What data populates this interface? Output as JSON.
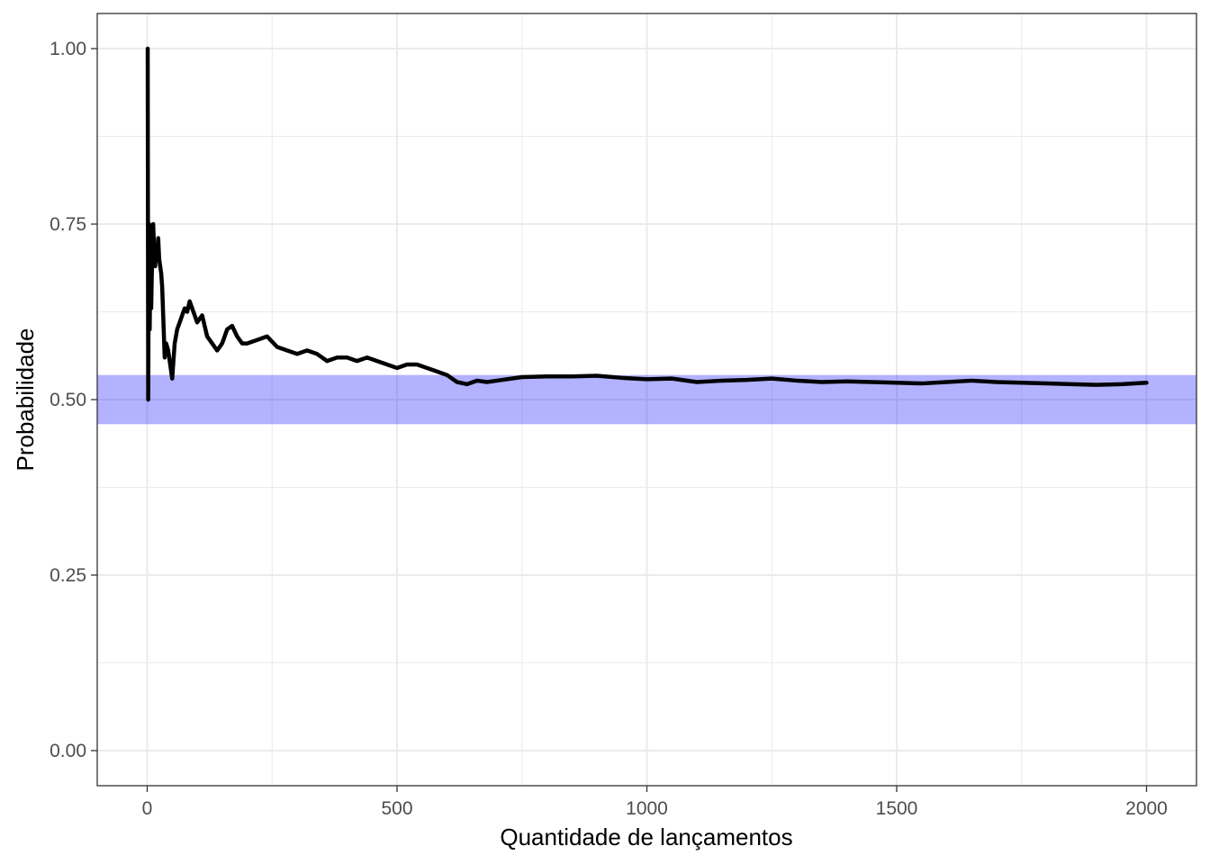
{
  "chart_data": {
    "type": "line",
    "title": "",
    "xlabel": "Quantidade de lançamentos",
    "ylabel": "Probabilidade",
    "xlim": [
      -100,
      2100
    ],
    "ylim": [
      -0.05,
      1.05
    ],
    "x_ticks": [
      0,
      500,
      1000,
      1500,
      2000
    ],
    "x_tick_labels": [
      "0",
      "500",
      "1000",
      "1500",
      "2000"
    ],
    "y_ticks": [
      0,
      0.25,
      0.5,
      0.75,
      1
    ],
    "y_tick_labels": [
      "0.00",
      "0.25",
      "0.50",
      "0.75",
      "1.00"
    ],
    "grid": true,
    "band": {
      "ymin": 0.465,
      "ymax": 0.535,
      "color": "#0000ff",
      "opacity": 0.3
    },
    "line_color": "#000000",
    "series": [
      {
        "x": [
          1,
          2,
          3,
          4,
          5,
          6,
          7,
          8,
          9,
          10,
          12,
          14,
          16,
          18,
          20,
          22,
          24,
          26,
          28,
          30,
          32,
          35,
          38,
          42,
          46,
          50,
          55,
          60,
          65,
          70,
          75,
          80,
          85,
          90,
          95,
          100,
          110,
          120,
          130,
          140,
          150,
          160,
          170,
          180,
          190,
          200,
          220,
          240,
          260,
          280,
          300,
          320,
          340,
          360,
          380,
          400,
          420,
          440,
          460,
          480,
          500,
          520,
          540,
          560,
          580,
          600,
          620,
          640,
          660,
          680,
          700,
          750,
          800,
          850,
          900,
          950,
          1000,
          1050,
          1100,
          1150,
          1200,
          1250,
          1300,
          1350,
          1400,
          1450,
          1500,
          1550,
          1600,
          1650,
          1700,
          1750,
          1800,
          1850,
          1900,
          1950,
          2000
        ],
        "y": [
          1.0,
          0.5,
          0.67,
          0.75,
          0.6,
          0.67,
          0.71,
          0.63,
          0.67,
          0.7,
          0.75,
          0.71,
          0.69,
          0.72,
          0.7,
          0.73,
          0.7,
          0.69,
          0.68,
          0.66,
          0.62,
          0.56,
          0.58,
          0.57,
          0.55,
          0.53,
          0.58,
          0.6,
          0.61,
          0.62,
          0.63,
          0.625,
          0.64,
          0.63,
          0.62,
          0.61,
          0.62,
          0.59,
          0.58,
          0.57,
          0.58,
          0.6,
          0.605,
          0.59,
          0.58,
          0.58,
          0.585,
          0.59,
          0.575,
          0.57,
          0.565,
          0.57,
          0.565,
          0.555,
          0.56,
          0.56,
          0.555,
          0.56,
          0.555,
          0.55,
          0.545,
          0.55,
          0.55,
          0.545,
          0.54,
          0.535,
          0.525,
          0.522,
          0.527,
          0.525,
          0.527,
          0.532,
          0.533,
          0.533,
          0.534,
          0.531,
          0.529,
          0.53,
          0.525,
          0.527,
          0.528,
          0.53,
          0.527,
          0.525,
          0.526,
          0.525,
          0.524,
          0.523,
          0.525,
          0.527,
          0.525,
          0.524,
          0.523,
          0.522,
          0.521,
          0.522,
          0.524
        ]
      }
    ]
  }
}
